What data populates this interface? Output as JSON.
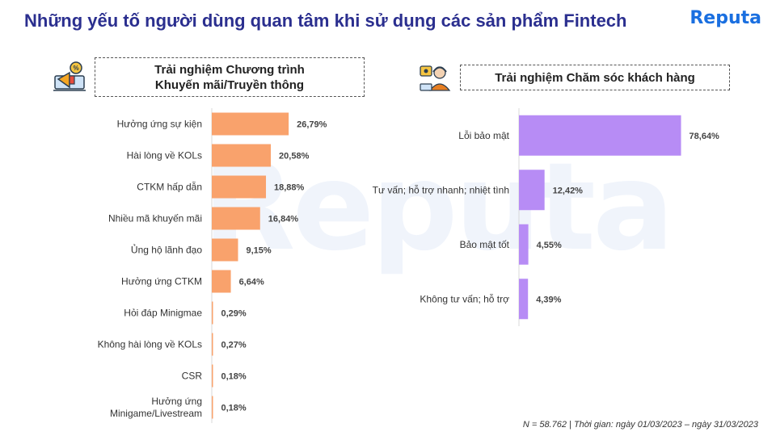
{
  "page": {
    "title": "Những yếu tố người dùng quan tâm khi sử dụng các sản phẩm Fintech",
    "logo": "Reputa",
    "watermark": "Reputa",
    "footer": "N = 58.762 | Thời gian: ngày 01/03/2023 – ngày 31/03/2023",
    "colors": {
      "title": "#2b2f8f",
      "left_bar": "#f9a26c",
      "right_bar": "#b78cf5",
      "logo": "#1a6fe0"
    }
  },
  "left_panel": {
    "heading_line1": "Trải nghiệm Chương trình",
    "heading_line2": "Khuyến mãi/Truyền thông",
    "icon": "megaphone-promotion-icon"
  },
  "right_panel": {
    "heading": "Trải nghiệm Chăm sóc khách hàng",
    "icon": "customer-support-agent-icon"
  },
  "chart_data": [
    {
      "type": "bar",
      "orientation": "horizontal",
      "categories": [
        "Hưởng ứng sự kiện",
        "Hài lòng về KOLs",
        "CTKM hấp dẫn",
        "Nhiều mã khuyến mãi",
        "Ủng hộ lãnh đạo",
        "Hưởng ứng CTKM",
        "Hỏi đáp Minigmae",
        "Không hài lòng về KOLs",
        "CSR",
        "Hưởng ứng Minigame/Livestream"
      ],
      "values": [
        26.79,
        20.58,
        18.88,
        16.84,
        9.15,
        6.64,
        0.29,
        0.27,
        0.18,
        0.18
      ],
      "labels": [
        "26,79%",
        "20,58%",
        "18,88%",
        "16,84%",
        "9,15%",
        "6,64%",
        "0,29%",
        "0,27%",
        "0,18%",
        "0,18%"
      ],
      "color": "#f9a26c"
    },
    {
      "type": "bar",
      "orientation": "horizontal",
      "categories": [
        "Lỗi bảo mật",
        "Tư vấn; hỗ trợ nhanh; nhiệt tình",
        "Bảo mật tốt",
        "Không tư vấn; hỗ trợ"
      ],
      "values": [
        78.64,
        12.42,
        4.55,
        4.39
      ],
      "labels": [
        "78,64%",
        "12,42%",
        "4,55%",
        "4,39%"
      ],
      "color": "#b78cf5"
    }
  ]
}
